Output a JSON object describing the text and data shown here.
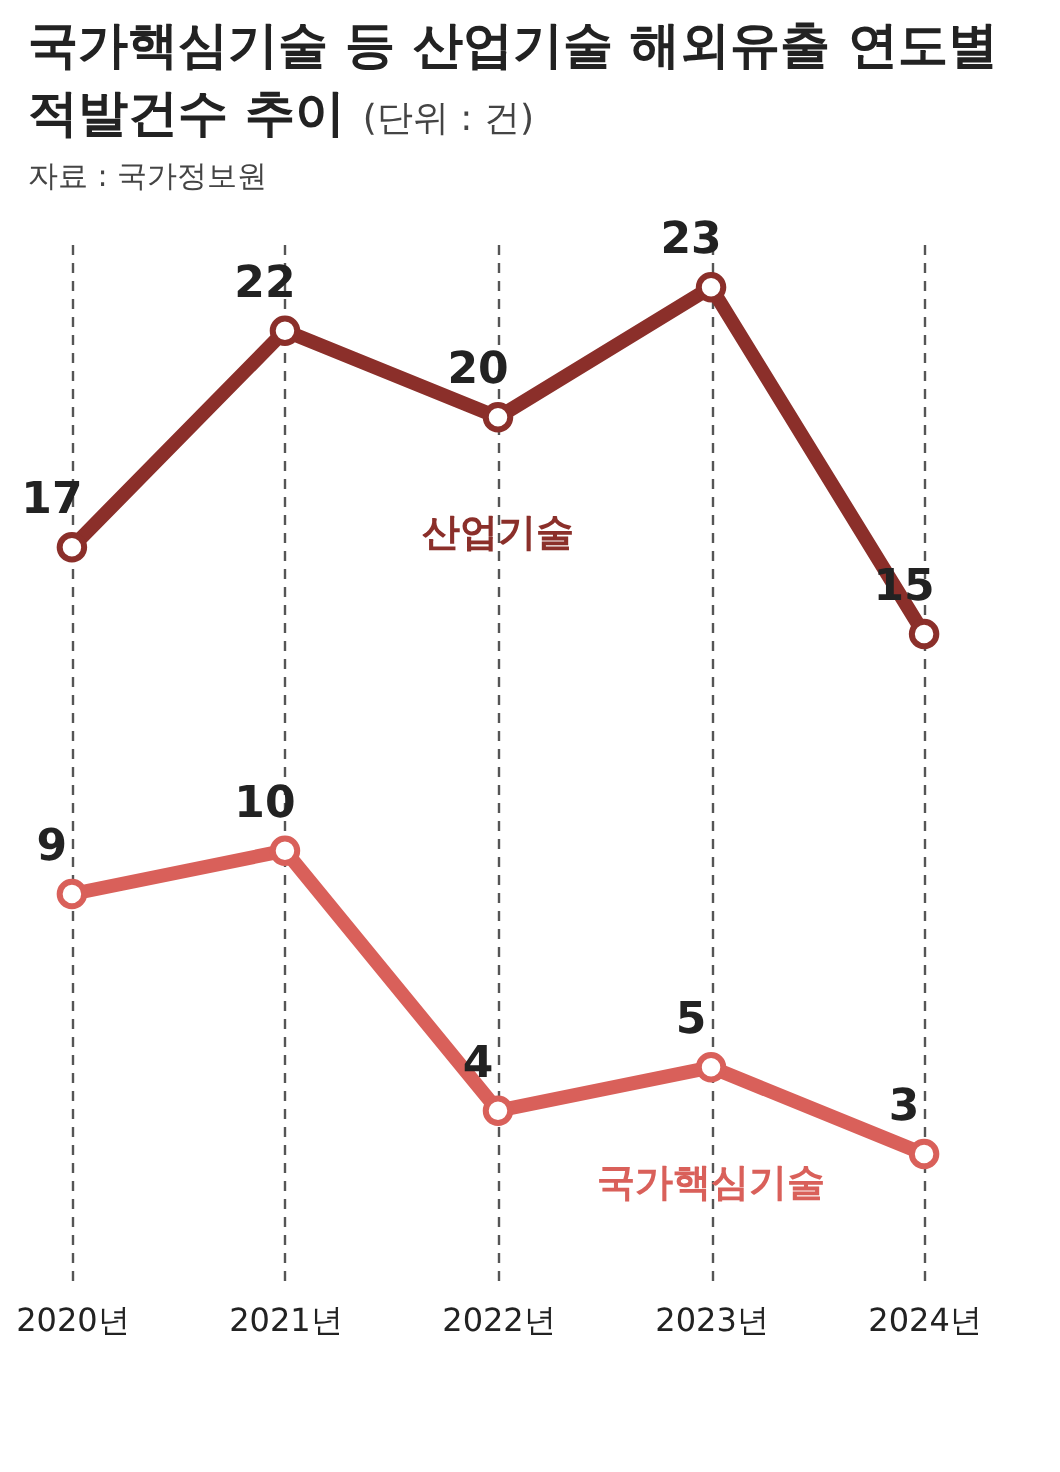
{
  "chart_data": {
    "type": "line",
    "title": "국가핵심기술 등 산업기술 해외유출 연도별 적발건수 추이",
    "subtitle": "(단위 : 건)",
    "annotations": [
      "자료 : 국가정보원"
    ],
    "categories": [
      "2020년",
      "2021년",
      "2022년",
      "2023년",
      "2024년"
    ],
    "series": [
      {
        "name": "산업기술",
        "color": "#8b2f2a",
        "values": [
          17,
          22,
          20,
          23,
          15
        ]
      },
      {
        "name": "국가핵심기술",
        "color": "#d9605a",
        "values": [
          9,
          10,
          4,
          5,
          3
        ]
      }
    ],
    "ylim": [
      0,
      24
    ],
    "data_labels": true,
    "marker": "circle",
    "grid": "x",
    "legend": false
  }
}
